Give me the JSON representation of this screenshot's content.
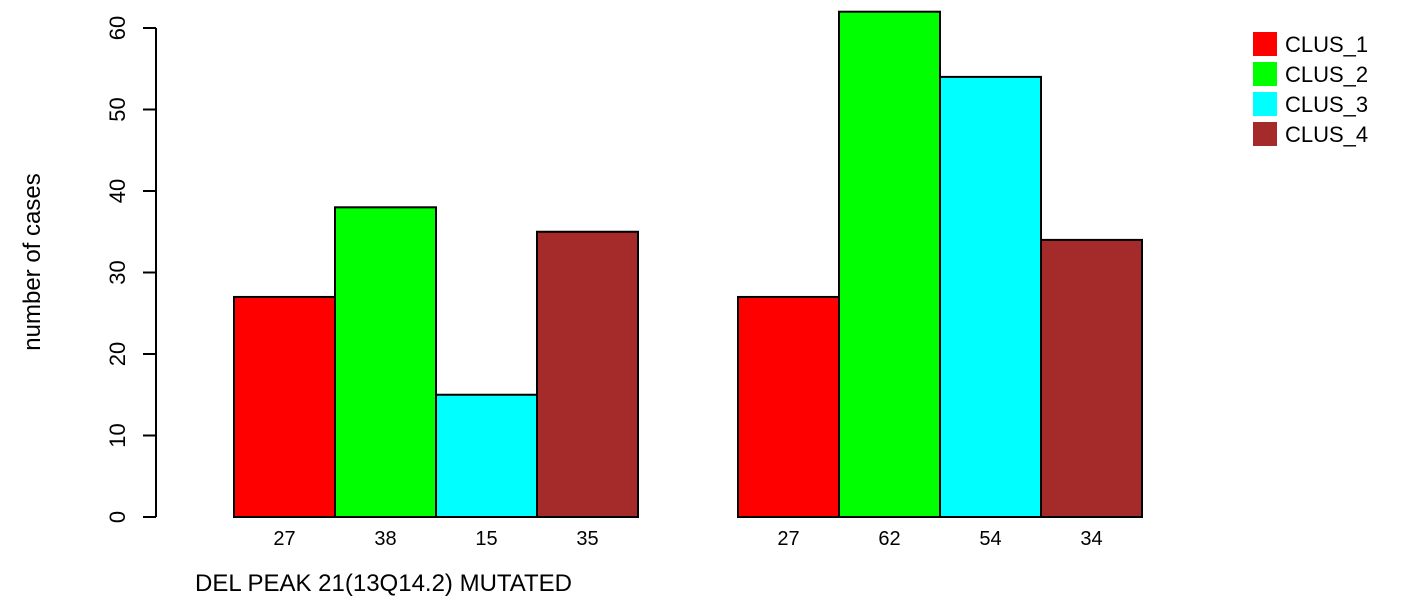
{
  "chart_data": {
    "type": "bar",
    "title": "",
    "ylabel": "number of cases",
    "xlabel": "DEL PEAK 21(13Q14.2) MUTATED",
    "ylim": [
      0,
      60
    ],
    "yticks": [
      0,
      10,
      20,
      30,
      40,
      50,
      60
    ],
    "grid": false,
    "legend_position": "top-right",
    "groups": [
      {
        "values": [
          27,
          38,
          15,
          35
        ],
        "labels": [
          "27",
          "38",
          "15",
          "35"
        ]
      },
      {
        "values": [
          27,
          62,
          54,
          34
        ],
        "labels": [
          "27",
          "62",
          "54",
          "34"
        ]
      }
    ],
    "series": [
      {
        "name": "CLUS_1",
        "color": "#ff0000"
      },
      {
        "name": "CLUS_2",
        "color": "#00ff00"
      },
      {
        "name": "CLUS_3",
        "color": "#00ffff"
      },
      {
        "name": "CLUS_4",
        "color": "#a52a2a"
      }
    ]
  }
}
